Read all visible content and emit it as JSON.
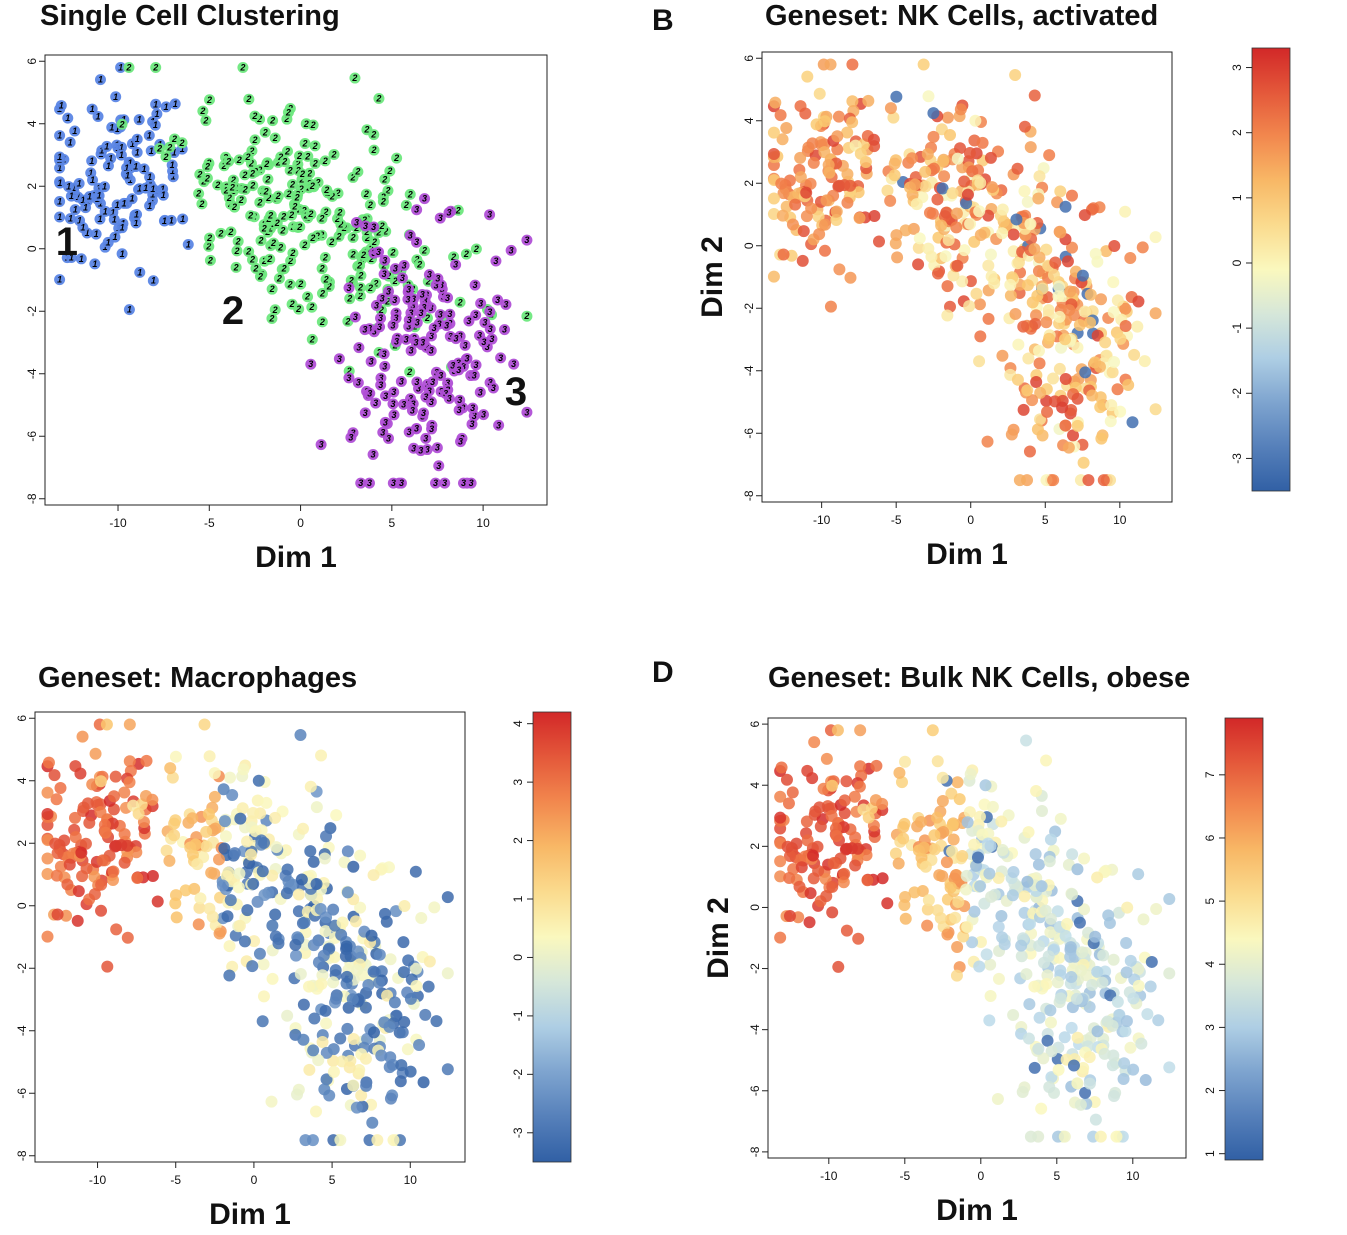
{
  "panels": {
    "A": {
      "title": "Single Cell Clustering",
      "letter": ""
    },
    "B": {
      "title": "Geneset: NK Cells, activated",
      "letter": "B"
    },
    "C": {
      "title": "Geneset: Macrophages",
      "letter": ""
    },
    "D": {
      "title": "Geneset: Bulk NK Cells, obese",
      "letter": "D"
    }
  },
  "chart_data": [
    {
      "id": "A",
      "type": "scatter",
      "title": "Single Cell Clustering",
      "xlabel": "Dim 1",
      "ylabel": "",
      "xlim": [
        -14,
        13.5
      ],
      "ylim": [
        -8.2,
        6.2
      ],
      "xticks": [
        -10,
        -5,
        0,
        5,
        10
      ],
      "yticks": [
        -8,
        -6,
        -4,
        -2,
        0,
        2,
        4,
        6
      ],
      "grid": false,
      "legend": "none",
      "series": [
        {
          "name": "1",
          "color": "#5b86e5",
          "n": 130
        },
        {
          "name": "2",
          "color": "#6ee87e",
          "n": 260
        },
        {
          "name": "3",
          "color": "#b04fd6",
          "n": 190
        }
      ],
      "cluster_labels": [
        {
          "text": "1",
          "x": -12.8,
          "y": -0.2
        },
        {
          "text": "2",
          "x": -3.7,
          "y": -2.4
        },
        {
          "text": "3",
          "x": 11.8,
          "y": -5.0
        }
      ]
    },
    {
      "id": "B",
      "type": "scatter",
      "title": "Geneset: NK Cells, activated",
      "xlabel": "Dim 1",
      "ylabel": "Dim 2",
      "xlim": [
        -14,
        13.5
      ],
      "ylim": [
        -8.2,
        6.2
      ],
      "xticks": [
        -10,
        -5,
        0,
        5,
        10
      ],
      "yticks": [
        -8,
        -6,
        -4,
        -2,
        0,
        2,
        4,
        6
      ],
      "colorbar": {
        "min": -3.5,
        "max": 3.3,
        "ticks": [
          -3,
          -2,
          -1,
          0,
          1,
          2,
          3
        ]
      },
      "pattern": "mixed-warm"
    },
    {
      "id": "C",
      "type": "scatter",
      "title": "Geneset: Macrophages",
      "xlabel": "Dim 1",
      "ylabel": "",
      "xlim": [
        -14,
        13.5
      ],
      "ylim": [
        -8.2,
        6.2
      ],
      "xticks": [
        -10,
        -5,
        0,
        5,
        10
      ],
      "yticks": [
        -8,
        -6,
        -4,
        -2,
        0,
        2,
        4,
        6
      ],
      "colorbar": {
        "min": -3.5,
        "max": 4.2,
        "ticks": [
          -3,
          -2,
          -1,
          0,
          1,
          2,
          3,
          4
        ]
      },
      "pattern": "high-left-low-right"
    },
    {
      "id": "D",
      "type": "scatter",
      "title": "Geneset: Bulk NK Cells, obese",
      "xlabel": "Dim 1",
      "ylabel": "Dim 2",
      "xlim": [
        -14,
        13.5
      ],
      "ylim": [
        -8.2,
        6.2
      ],
      "xticks": [
        -10,
        -5,
        0,
        5,
        10
      ],
      "yticks": [
        -8,
        -6,
        -4,
        -2,
        0,
        2,
        4,
        6
      ],
      "colorbar": {
        "min": 0.9,
        "max": 7.9,
        "ticks": [
          1,
          2,
          3,
          4,
          5,
          6,
          7
        ]
      },
      "pattern": "high-left-mid-right"
    }
  ]
}
